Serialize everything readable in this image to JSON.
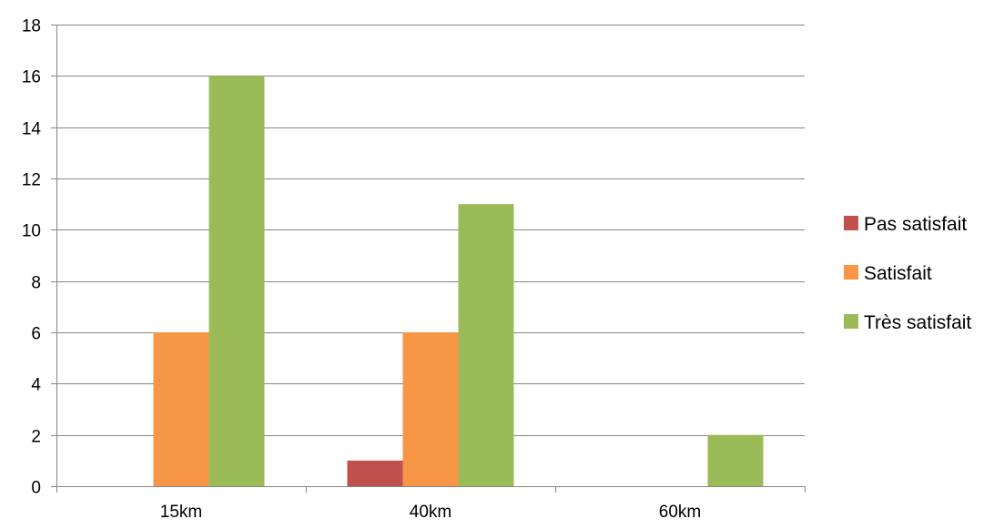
{
  "chart_data": {
    "type": "bar",
    "categories": [
      "15km",
      "40km",
      "60km"
    ],
    "series": [
      {
        "name": "Pas satisfait",
        "values": [
          0,
          1,
          0
        ],
        "color": "#C0504D"
      },
      {
        "name": "Satisfait",
        "values": [
          6,
          6,
          0
        ],
        "color": "#F79646"
      },
      {
        "name": "Très satisfait",
        "values": [
          16,
          11,
          2
        ],
        "color": "#9BBB59"
      }
    ],
    "ylim": [
      0,
      18
    ],
    "yticks": [
      "0",
      "2",
      "4",
      "6",
      "8",
      "10",
      "12",
      "14",
      "16",
      "18"
    ],
    "grid": true,
    "legend_position": "right",
    "gridline_color": "#868686",
    "axis_color": "#868686"
  }
}
